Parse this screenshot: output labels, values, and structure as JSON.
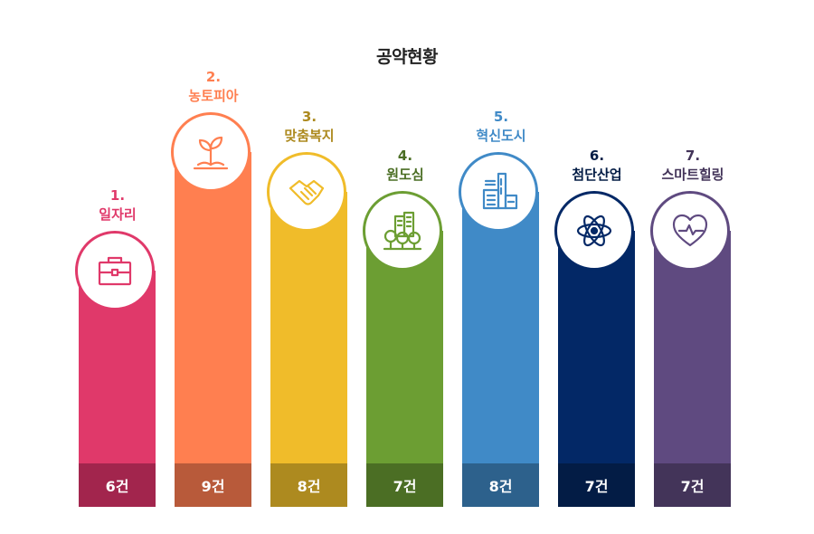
{
  "chart_data": {
    "type": "bar",
    "title": "공약현황",
    "ylim": [
      0,
      9
    ],
    "categories": [
      "1. 일자리",
      "2. 농토피아",
      "3. 맞춤복지",
      "4. 원도심",
      "5. 혁신도시",
      "6. 첨단산업",
      "7. 스마트힐링"
    ],
    "values": [
      6,
      9,
      8,
      7,
      8,
      7,
      7
    ],
    "items": [
      {
        "num": "1.",
        "name": "일자리",
        "value": 6,
        "value_label": "6건",
        "color": "#e0396a",
        "dark": "#a2254d",
        "icon": "briefcase-icon"
      },
      {
        "num": "2.",
        "name": "농토피아",
        "value": 9,
        "value_label": "9건",
        "color": "#ff7f50",
        "dark": "#b85a3a",
        "icon": "sprout-icon"
      },
      {
        "num": "3.",
        "name": "맞춤복지",
        "value": 8,
        "value_label": "8건",
        "color": "#f0bc2a",
        "dark": "#ad8a1f",
        "icon": "handshake-icon"
      },
      {
        "num": "4.",
        "name": "원도심",
        "value": 7,
        "value_label": "7건",
        "color": "#6c9e33",
        "dark": "#4b6e24",
        "icon": "city-trees-icon"
      },
      {
        "num": "5.",
        "name": "혁신도시",
        "value": 8,
        "value_label": "8건",
        "color": "#408ac7",
        "dark": "#2d618c",
        "icon": "buildings-icon"
      },
      {
        "num": "6.",
        "name": "첨단산업",
        "value": 7,
        "value_label": "7건",
        "color": "#032866",
        "dark": "#031c45",
        "icon": "atom-icon"
      },
      {
        "num": "7.",
        "name": "스마트힐링",
        "value": 7,
        "value_label": "7건",
        "color": "#5f4a80",
        "dark": "#433459",
        "icon": "heart-pulse-icon"
      }
    ]
  }
}
